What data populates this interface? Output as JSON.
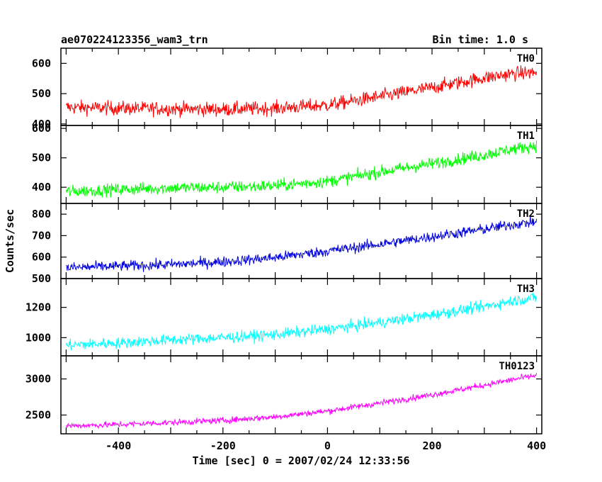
{
  "header": {
    "title": "ae070224123356_wam3_trn",
    "bin_time": "Bin time: 1.0 s"
  },
  "chart_data": {
    "type": "line",
    "xlabel": "Time [sec] 0 = 2007/02/24 12:33:56",
    "ylabel": "Counts/sec",
    "xlim": [
      -510,
      410
    ],
    "xticks": [
      -400,
      -200,
      0,
      200,
      400
    ],
    "bin_time_s": 1.0,
    "grid": false,
    "series": [
      {
        "name": "TH0",
        "color": "#ff0000",
        "ylim": [
          395,
          650
        ],
        "yticks": [
          400,
          500,
          600
        ],
        "x": [
          -500,
          -400,
          -300,
          -200,
          -100,
          0,
          100,
          200,
          300,
          350,
          400
        ],
        "y": [
          455,
          452,
          450,
          448,
          452,
          462,
          490,
          520,
          552,
          565,
          570
        ],
        "noise": 30
      },
      {
        "name": "TH1",
        "color": "#00ff00",
        "ylim": [
          345,
          610
        ],
        "yticks": [
          400,
          500,
          600
        ],
        "x": [
          -500,
          -400,
          -300,
          -200,
          -100,
          0,
          100,
          200,
          300,
          350,
          400
        ],
        "y": [
          385,
          392,
          398,
          400,
          405,
          420,
          452,
          480,
          510,
          528,
          542
        ],
        "noise": 27
      },
      {
        "name": "TH2",
        "color": "#0000dd",
        "ylim": [
          500,
          850
        ],
        "yticks": [
          500,
          600,
          700,
          800
        ],
        "x": [
          -500,
          -400,
          -300,
          -200,
          -100,
          0,
          100,
          200,
          300,
          350,
          400
        ],
        "y": [
          550,
          558,
          565,
          578,
          598,
          628,
          660,
          695,
          730,
          750,
          765
        ],
        "noise": 32
      },
      {
        "name": "TH3",
        "color": "#00ffff",
        "ylim": [
          880,
          1390
        ],
        "yticks": [
          1000,
          1200
        ],
        "x": [
          -500,
          -400,
          -300,
          -200,
          -100,
          0,
          100,
          200,
          300,
          350,
          400
        ],
        "y": [
          950,
          965,
          985,
          1000,
          1020,
          1055,
          1100,
          1150,
          1205,
          1240,
          1265
        ],
        "noise": 48
      },
      {
        "name": "TH0123",
        "color": "#ff00ff",
        "ylim": [
          2240,
          3320
        ],
        "yticks": [
          2500,
          3000
        ],
        "x": [
          -500,
          -400,
          -300,
          -200,
          -100,
          0,
          100,
          200,
          300,
          350,
          400
        ],
        "y": [
          2350,
          2368,
          2395,
          2425,
          2475,
          2555,
          2665,
          2780,
          2915,
          2985,
          3050
        ],
        "noise": 55
      }
    ]
  }
}
